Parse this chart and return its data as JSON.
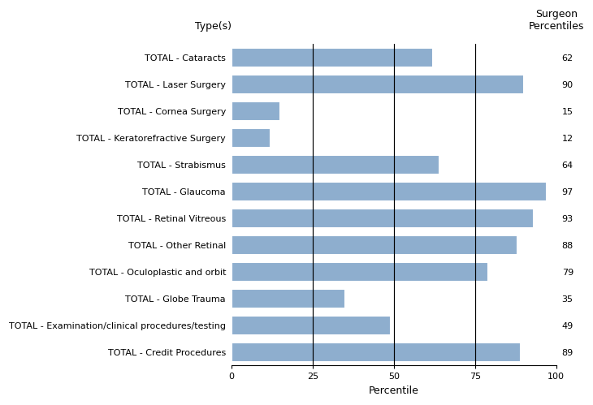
{
  "categories": [
    "TOTAL - Cataracts",
    "TOTAL - Laser Surgery",
    "TOTAL - Cornea Surgery",
    "TOTAL - Keratorefractive Surgery",
    "TOTAL - Strabismus",
    "TOTAL - Glaucoma",
    "TOTAL - Retinal Vitreous",
    "TOTAL - Other Retinal",
    "TOTAL - Oculoplastic and orbit",
    "TOTAL - Globe Trauma",
    "TOTAL - Examination/clinical procedures/testing",
    "TOTAL - Credit Procedures"
  ],
  "values": [
    62,
    90,
    15,
    12,
    64,
    97,
    93,
    88,
    79,
    35,
    49,
    89
  ],
  "surgeon_percentiles": [
    62,
    90,
    15,
    12,
    64,
    97,
    93,
    88,
    79,
    35,
    49,
    89
  ],
  "bar_color": "#8eaece",
  "background_color": "#ffffff",
  "xlabel": "Percentile",
  "ylabel": "Type(s)",
  "xlim": [
    0,
    100
  ],
  "xticks": [
    0,
    25,
    50,
    75,
    100
  ],
  "vlines": [
    25,
    50,
    75
  ],
  "vline_color": "#000000",
  "right_label": "Surgeon\nPercentiles",
  "tick_fontsize": 8.0,
  "label_fontsize": 9.0,
  "bar_height": 0.72
}
